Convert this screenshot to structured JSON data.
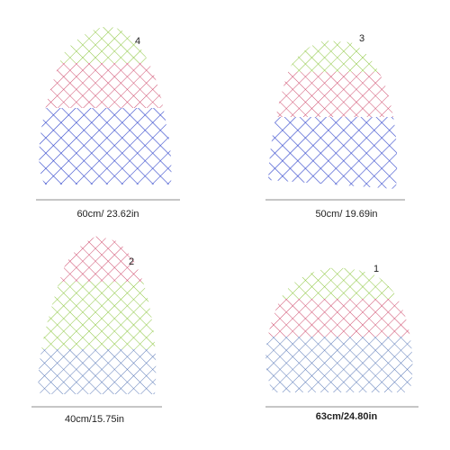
{
  "items": [
    {
      "number": "4",
      "size": "60cm/ 23.62in"
    },
    {
      "number": "3",
      "size": "50cm/ 19.69in"
    },
    {
      "number": "2",
      "size": "40cm/15.75in"
    },
    {
      "number": "1",
      "size": "63cm/24.80in"
    }
  ]
}
